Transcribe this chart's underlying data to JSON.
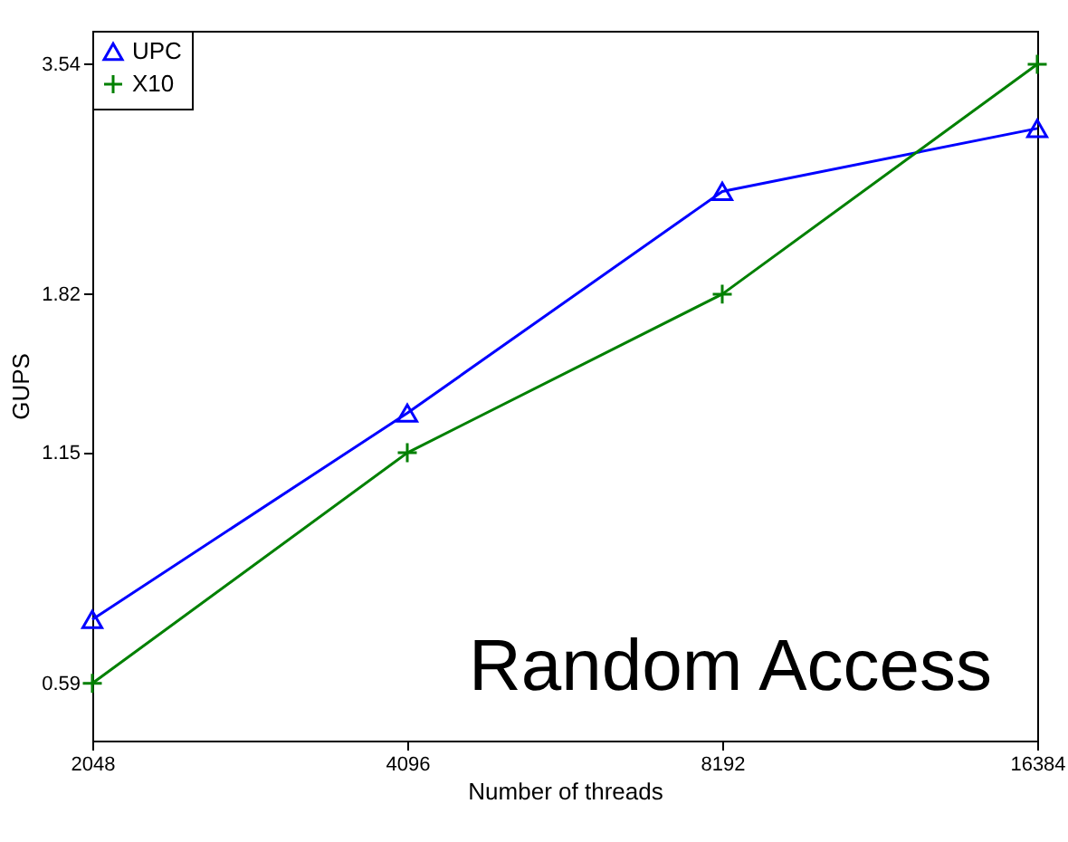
{
  "chart_data": {
    "type": "line",
    "xlabel": "Number of threads",
    "ylabel": "GUPS",
    "x": [
      2048,
      4096,
      8192,
      16384
    ],
    "series": [
      {
        "name": "UPC",
        "color": "#0000ff",
        "marker": "triangle",
        "values": [
          0.71,
          1.29,
          2.45,
          2.94
        ]
      },
      {
        "name": "X10",
        "color": "#008000",
        "marker": "cross",
        "values": [
          0.59,
          1.15,
          1.82,
          3.54
        ]
      }
    ],
    "log": "xy",
    "xlim": [
      2048,
      16384
    ],
    "ylim": [
      0.5,
      3.9
    ],
    "xticks": [
      2048,
      4096,
      8192,
      16384
    ],
    "yticks": [
      0.59,
      1.15,
      1.82,
      3.54
    ],
    "grid": false,
    "legend": "top left",
    "annotations": [
      "Random Access"
    ]
  }
}
